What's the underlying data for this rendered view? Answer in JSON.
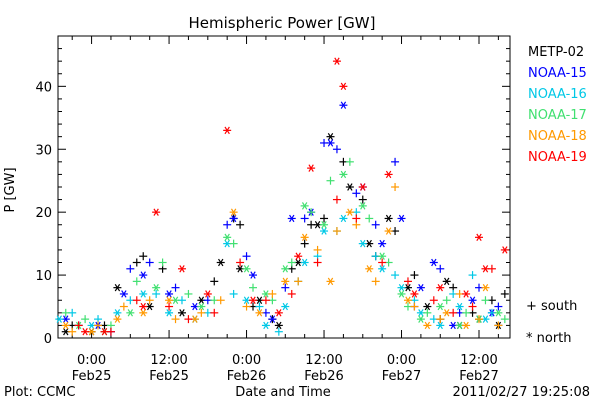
{
  "chart_data": {
    "type": "scatter",
    "title": "Hemispheric Power [GW]",
    "ylabel": "P [GW]",
    "xlabel": "Date and Time",
    "plot_credit": "Plot: CCMC",
    "timestamp": "2011/02/27 19:25:08",
    "ylim": [
      0,
      48
    ],
    "xlim": [
      -5.2,
      64.8
    ],
    "x_units": "hours since 2011-02-25 00:00 UT",
    "yticks": [
      0,
      10,
      20,
      30,
      40
    ],
    "xticks": [
      {
        "value": 0,
        "time": "0:00",
        "date": "Feb25"
      },
      {
        "value": 12,
        "time": "12:00",
        "date": "Feb25"
      },
      {
        "value": 24,
        "time": "0:00",
        "date": "Feb26"
      },
      {
        "value": 36,
        "time": "12:00",
        "date": "Feb26"
      },
      {
        "value": 48,
        "time": "0:00",
        "date": "Feb27"
      },
      {
        "value": 60,
        "time": "12:00",
        "date": "Feb27"
      }
    ],
    "grid": false,
    "legend_position": "right",
    "marker_legend": [
      {
        "marker": "+",
        "label": "+ south"
      },
      {
        "marker": "*",
        "label": "* north"
      }
    ],
    "series": [
      {
        "name": "METP-02",
        "color": "#000000",
        "south": [
          [
            -3,
            2
          ],
          [
            2,
            2
          ],
          [
            7,
            12
          ],
          [
            8,
            13
          ],
          [
            11,
            11
          ],
          [
            19,
            9
          ],
          [
            22,
            19
          ],
          [
            23,
            18
          ],
          [
            25,
            5
          ],
          [
            28,
            3
          ],
          [
            31,
            11
          ],
          [
            33,
            15
          ],
          [
            34,
            18
          ],
          [
            36,
            19
          ],
          [
            39,
            28
          ],
          [
            42,
            22
          ],
          [
            44,
            13
          ],
          [
            47,
            17
          ],
          [
            50,
            10
          ],
          [
            54,
            3
          ],
          [
            56,
            8
          ],
          [
            59,
            4
          ],
          [
            62,
            6
          ],
          [
            64,
            7
          ]
        ],
        "north": [
          [
            -4,
            1
          ],
          [
            0,
            1
          ],
          [
            4,
            8
          ],
          [
            9,
            5
          ],
          [
            14,
            4
          ],
          [
            17,
            6
          ],
          [
            20,
            12
          ],
          [
            23,
            11
          ],
          [
            26,
            6
          ],
          [
            29,
            2
          ],
          [
            32,
            12
          ],
          [
            35,
            18
          ],
          [
            37,
            32
          ],
          [
            40,
            24
          ],
          [
            43,
            15
          ],
          [
            46,
            19
          ],
          [
            49,
            8
          ],
          [
            52,
            5
          ],
          [
            55,
            9
          ],
          [
            57,
            2
          ],
          [
            60,
            3
          ],
          [
            63,
            2
          ]
        ]
      },
      {
        "name": "NOAA-15",
        "color": "#0000ff",
        "south": [
          [
            -2,
            2
          ],
          [
            3,
            1
          ],
          [
            6,
            11
          ],
          [
            9,
            12
          ],
          [
            13,
            8
          ],
          [
            18,
            6
          ],
          [
            21,
            18
          ],
          [
            24,
            13
          ],
          [
            27,
            4
          ],
          [
            30,
            8
          ],
          [
            33,
            19
          ],
          [
            36,
            31
          ],
          [
            38,
            30
          ],
          [
            41,
            23
          ],
          [
            44,
            18
          ],
          [
            47,
            28
          ],
          [
            50,
            5
          ],
          [
            54,
            11
          ],
          [
            57,
            4
          ],
          [
            60,
            8
          ],
          [
            63,
            5
          ]
        ],
        "north": [
          [
            -4,
            3
          ],
          [
            1,
            2
          ],
          [
            5,
            7
          ],
          [
            8,
            10
          ],
          [
            12,
            7
          ],
          [
            16,
            5
          ],
          [
            22,
            19
          ],
          [
            25,
            10
          ],
          [
            28,
            3
          ],
          [
            31,
            19
          ],
          [
            34,
            20
          ],
          [
            37,
            31
          ],
          [
            39,
            37
          ],
          [
            42,
            24
          ],
          [
            45,
            15
          ],
          [
            48,
            19
          ],
          [
            51,
            8
          ],
          [
            53,
            12
          ],
          [
            56,
            2
          ],
          [
            59,
            6
          ],
          [
            62,
            4
          ]
        ]
      },
      {
        "name": "NOAA-16",
        "color": "#00c8e6",
        "south": [
          [
            -3,
            4
          ],
          [
            1,
            3
          ],
          [
            6,
            6
          ],
          [
            10,
            7
          ],
          [
            14,
            6
          ],
          [
            18,
            4
          ],
          [
            22,
            7
          ],
          [
            26,
            5
          ],
          [
            29,
            1
          ],
          [
            32,
            9
          ],
          [
            35,
            13
          ],
          [
            38,
            17
          ],
          [
            41,
            20
          ],
          [
            44,
            13
          ],
          [
            47,
            10
          ],
          [
            50,
            6
          ],
          [
            53,
            3
          ],
          [
            56,
            7
          ],
          [
            59,
            10
          ],
          [
            62,
            4
          ]
        ],
        "north": [
          [
            -5,
            3
          ],
          [
            0,
            2
          ],
          [
            4,
            4
          ],
          [
            8,
            7
          ],
          [
            12,
            4
          ],
          [
            16,
            3
          ],
          [
            21,
            15
          ],
          [
            24,
            6
          ],
          [
            27,
            2
          ],
          [
            30,
            5
          ],
          [
            33,
            12
          ],
          [
            36,
            17
          ],
          [
            39,
            19
          ],
          [
            42,
            15
          ],
          [
            45,
            11
          ],
          [
            48,
            8
          ],
          [
            51,
            4
          ],
          [
            54,
            2
          ],
          [
            57,
            5
          ],
          [
            61,
            3
          ]
        ]
      },
      {
        "name": "NOAA-17",
        "color": "#40e070",
        "south": [
          [
            -4,
            4
          ],
          [
            -1,
            3
          ],
          [
            3,
            2
          ],
          [
            7,
            9
          ],
          [
            11,
            12
          ],
          [
            15,
            7
          ],
          [
            19,
            6
          ],
          [
            22,
            15
          ],
          [
            25,
            8
          ],
          [
            28,
            6
          ],
          [
            31,
            12
          ],
          [
            34,
            20
          ],
          [
            37,
            25
          ],
          [
            40,
            28
          ],
          [
            43,
            19
          ],
          [
            46,
            12
          ],
          [
            49,
            5
          ],
          [
            52,
            4
          ],
          [
            55,
            6
          ],
          [
            58,
            4
          ],
          [
            61,
            6
          ],
          [
            64,
            3
          ]
        ],
        "north": [
          [
            -2,
            2
          ],
          [
            2,
            1
          ],
          [
            6,
            4
          ],
          [
            10,
            8
          ],
          [
            13,
            6
          ],
          [
            17,
            5
          ],
          [
            21,
            16
          ],
          [
            24,
            11
          ],
          [
            27,
            7
          ],
          [
            30,
            11
          ],
          [
            33,
            21
          ],
          [
            36,
            18
          ],
          [
            39,
            26
          ],
          [
            42,
            21
          ],
          [
            45,
            13
          ],
          [
            48,
            7
          ],
          [
            51,
            3
          ],
          [
            54,
            5
          ],
          [
            57,
            2
          ],
          [
            60,
            3
          ],
          [
            63,
            4
          ]
        ]
      },
      {
        "name": "NOAA-18",
        "color": "#ff9900",
        "south": [
          [
            -3,
            1
          ],
          [
            1,
            2
          ],
          [
            5,
            5
          ],
          [
            9,
            6
          ],
          [
            13,
            3
          ],
          [
            17,
            4
          ],
          [
            20,
            6
          ],
          [
            24,
            5
          ],
          [
            28,
            7
          ],
          [
            32,
            9
          ],
          [
            35,
            14
          ],
          [
            38,
            17
          ],
          [
            41,
            18
          ],
          [
            44,
            9
          ],
          [
            47,
            24
          ],
          [
            50,
            5
          ],
          [
            54,
            3
          ],
          [
            57,
            7
          ],
          [
            60,
            3
          ],
          [
            63,
            2
          ]
        ],
        "north": [
          [
            -4,
            2
          ],
          [
            0,
            1
          ],
          [
            4,
            3
          ],
          [
            8,
            4
          ],
          [
            12,
            6
          ],
          [
            16,
            3
          ],
          [
            22,
            20
          ],
          [
            26,
            4
          ],
          [
            30,
            9
          ],
          [
            33,
            16
          ],
          [
            37,
            9
          ],
          [
            40,
            20
          ],
          [
            43,
            11
          ],
          [
            46,
            17
          ],
          [
            49,
            6
          ],
          [
            52,
            2
          ],
          [
            55,
            4
          ],
          [
            58,
            2
          ],
          [
            61,
            8
          ]
        ]
      },
      {
        "name": "NOAA-19",
        "color": "#ff0000",
        "south": [
          [
            -2,
            2
          ],
          [
            3,
            1
          ],
          [
            7,
            6
          ],
          [
            12,
            5
          ],
          [
            15,
            3
          ],
          [
            19,
            4
          ],
          [
            23,
            12
          ],
          [
            27,
            6
          ],
          [
            31,
            7
          ],
          [
            35,
            12
          ],
          [
            38,
            22
          ],
          [
            41,
            19
          ],
          [
            45,
            12
          ],
          [
            49,
            9
          ],
          [
            53,
            6
          ],
          [
            56,
            4
          ],
          [
            59,
            5
          ],
          [
            62,
            11
          ]
        ],
        "north": [
          [
            -1,
            1
          ],
          [
            2,
            1
          ],
          [
            8,
            5
          ],
          [
            10,
            20
          ],
          [
            14,
            11
          ],
          [
            18,
            7
          ],
          [
            21,
            33
          ],
          [
            25,
            6
          ],
          [
            29,
            4
          ],
          [
            32,
            13
          ],
          [
            34,
            27
          ],
          [
            38,
            44
          ],
          [
            39,
            40
          ],
          [
            42,
            24
          ],
          [
            46,
            26
          ],
          [
            50,
            7
          ],
          [
            54,
            8
          ],
          [
            58,
            7
          ],
          [
            60,
            16
          ],
          [
            61,
            11
          ],
          [
            64,
            14
          ]
        ]
      }
    ]
  }
}
